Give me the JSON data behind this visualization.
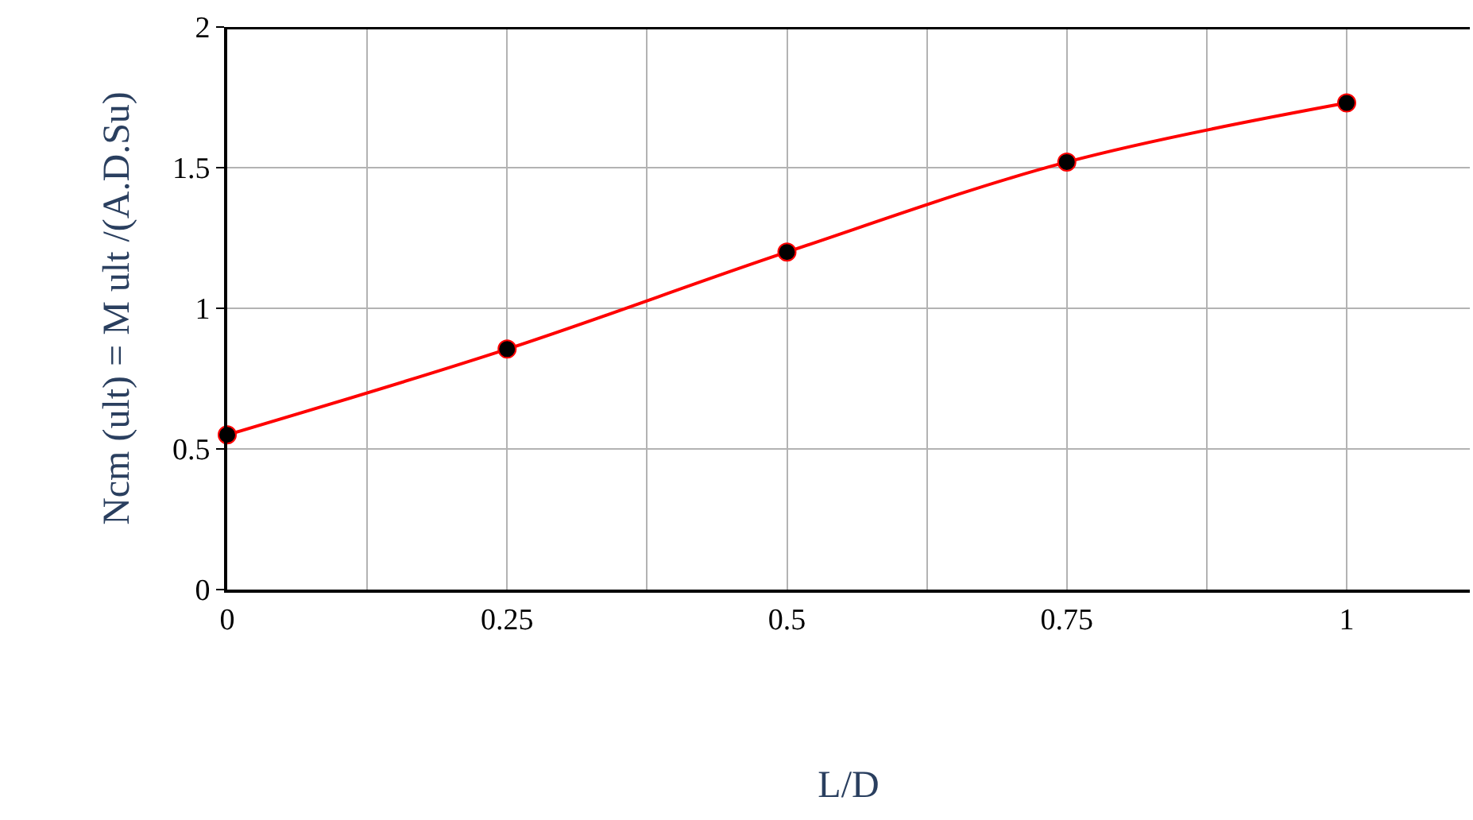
{
  "chart_data": {
    "type": "line",
    "xlabel": "L/D",
    "ylabel": "Ncm (ult) = M ult /(A.D.Su)",
    "x": [
      0,
      0.25,
      0.5,
      0.75,
      1
    ],
    "series": [
      {
        "color": "#ff0000",
        "values": [
          0.55,
          0.855,
          1.2,
          1.52,
          1.73
        ]
      }
    ],
    "xlim": [
      0,
      1.11
    ],
    "ylim": [
      0,
      2
    ],
    "xticks": [
      0,
      {
        "value": 0.125,
        "label": null
      },
      0.25,
      {
        "value": 0.375,
        "label": null
      },
      0.5,
      {
        "value": 0.625,
        "label": null
      },
      0.75,
      {
        "value": 0.875,
        "label": null
      },
      1
    ],
    "yticks": [
      0,
      0.5,
      1,
      1.5,
      2
    ],
    "grid": true,
    "marker": "circle",
    "line_style": "solid",
    "legend": false
  }
}
